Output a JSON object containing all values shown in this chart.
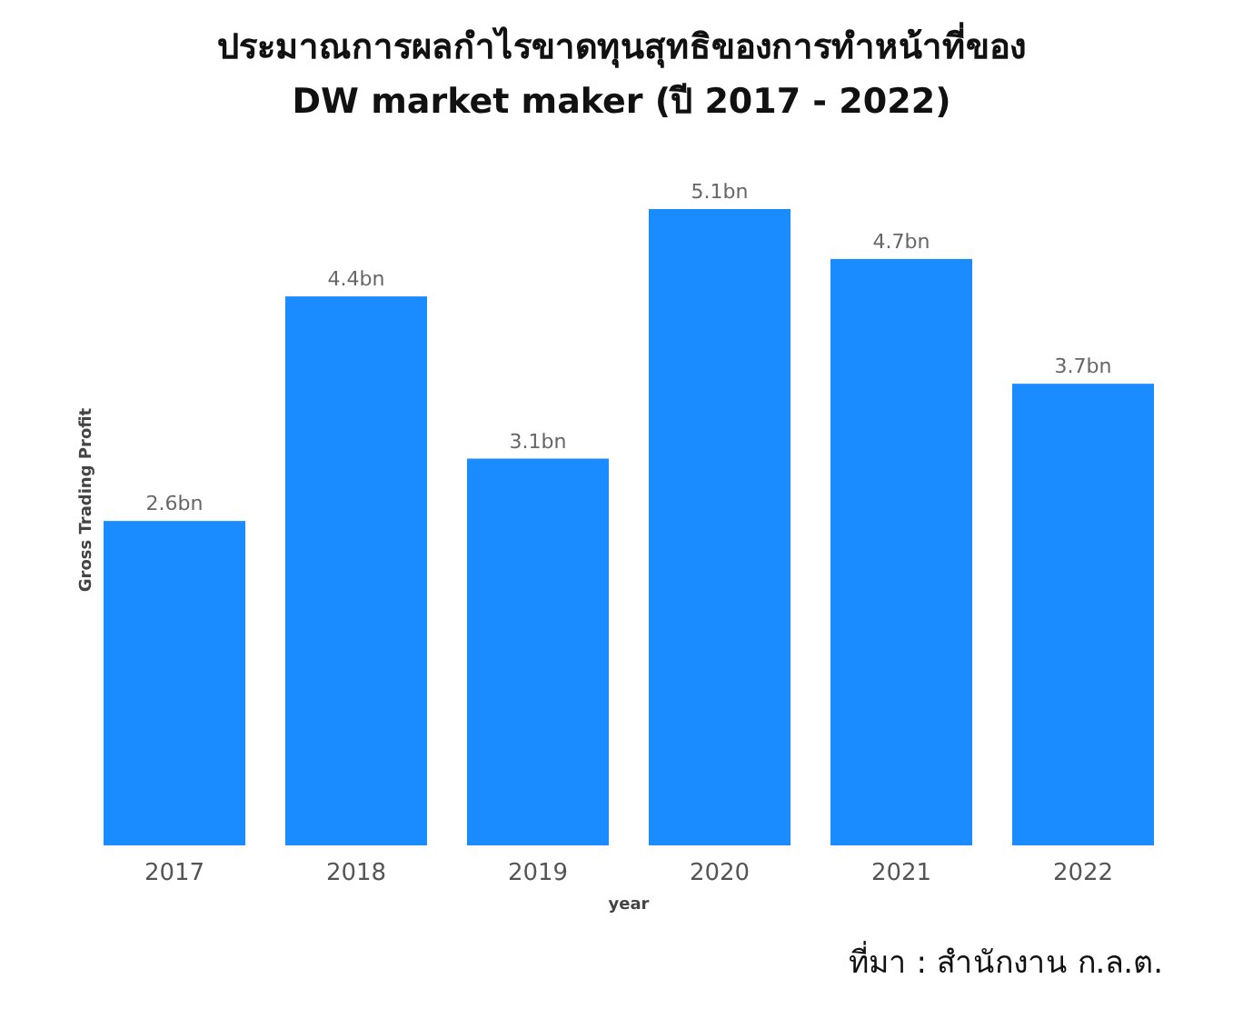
{
  "chart_data": {
    "type": "bar",
    "title": "ประมาณการผลกำไรขาดทุนสุทธิของการทำหน้าที่ของ\nDW market maker (ปี 2017 - 2022)",
    "xlabel": "year",
    "ylabel": "Gross Trading Profit",
    "categories": [
      "2017",
      "2018",
      "2019",
      "2020",
      "2021",
      "2022"
    ],
    "values": [
      2.6,
      4.4,
      3.1,
      5.1,
      4.7,
      3.7
    ],
    "value_labels": [
      "2.6bn",
      "4.4bn",
      "3.1bn",
      "5.1bn",
      "4.7bn",
      "3.7bn"
    ],
    "color": "#1a8cff",
    "annotations": [
      "ที่มา : สำนักงาน ก.ล.ต."
    ]
  }
}
